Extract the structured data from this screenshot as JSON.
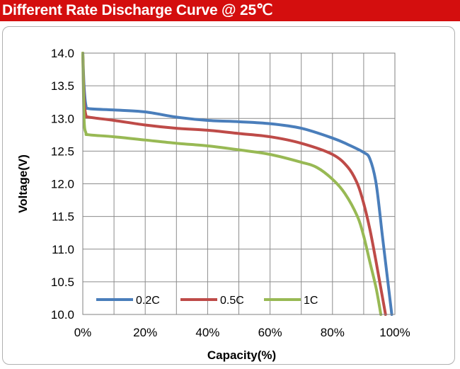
{
  "title": "Different Rate Discharge Curve @ 25℃",
  "chart_data": {
    "type": "line",
    "xlabel": "Capacity(%)",
    "ylabel": "Voltage(V)",
    "xlim": [
      0,
      100
    ],
    "ylim": [
      10.0,
      14.0
    ],
    "x_ticks": [
      0,
      20,
      40,
      60,
      80,
      100
    ],
    "x_tick_labels": [
      "0%",
      "20%",
      "40%",
      "60%",
      "80%",
      "100%"
    ],
    "y_ticks": [
      10.0,
      10.5,
      11.0,
      11.5,
      12.0,
      12.5,
      13.0,
      13.5,
      14.0
    ],
    "y_tick_labels": [
      "10.0",
      "10.5",
      "11.0",
      "11.5",
      "12.0",
      "12.5",
      "13.0",
      "13.5",
      "14.0"
    ],
    "grid": true,
    "legend_position": "bottom-left, inside plot",
    "series": [
      {
        "name": "0.2C",
        "color": "#4a7ebb",
        "points": [
          [
            0,
            14.0
          ],
          [
            0.4,
            13.5
          ],
          [
            1,
            13.2
          ],
          [
            2,
            13.15
          ],
          [
            10,
            13.13
          ],
          [
            20,
            13.1
          ],
          [
            30,
            13.02
          ],
          [
            40,
            12.97
          ],
          [
            50,
            12.95
          ],
          [
            60,
            12.92
          ],
          [
            70,
            12.85
          ],
          [
            80,
            12.7
          ],
          [
            85,
            12.6
          ],
          [
            90,
            12.48
          ],
          [
            92,
            12.38
          ],
          [
            94,
            12.0
          ],
          [
            96,
            11.2
          ],
          [
            97.5,
            10.6
          ],
          [
            99,
            10.0
          ]
        ]
      },
      {
        "name": "0.5C",
        "color": "#be4b48",
        "points": [
          [
            0,
            14.0
          ],
          [
            0.4,
            13.3
          ],
          [
            1,
            13.05
          ],
          [
            2,
            13.02
          ],
          [
            10,
            12.97
          ],
          [
            20,
            12.9
          ],
          [
            30,
            12.85
          ],
          [
            40,
            12.82
          ],
          [
            50,
            12.77
          ],
          [
            60,
            12.72
          ],
          [
            70,
            12.62
          ],
          [
            80,
            12.45
          ],
          [
            85,
            12.25
          ],
          [
            88,
            12.0
          ],
          [
            90,
            11.7
          ],
          [
            92,
            11.3
          ],
          [
            94,
            10.8
          ],
          [
            95.5,
            10.4
          ],
          [
            97,
            10.0
          ]
        ]
      },
      {
        "name": "1C",
        "color": "#98b954",
        "points": [
          [
            0,
            14.0
          ],
          [
            0.4,
            13.0
          ],
          [
            1,
            12.78
          ],
          [
            2,
            12.75
          ],
          [
            10,
            12.72
          ],
          [
            20,
            12.67
          ],
          [
            30,
            12.62
          ],
          [
            40,
            12.58
          ],
          [
            50,
            12.52
          ],
          [
            60,
            12.45
          ],
          [
            70,
            12.33
          ],
          [
            75,
            12.25
          ],
          [
            80,
            12.07
          ],
          [
            84,
            11.85
          ],
          [
            88,
            11.5
          ],
          [
            90,
            11.2
          ],
          [
            92,
            10.8
          ],
          [
            94,
            10.4
          ],
          [
            95.5,
            10.0
          ]
        ]
      }
    ]
  }
}
